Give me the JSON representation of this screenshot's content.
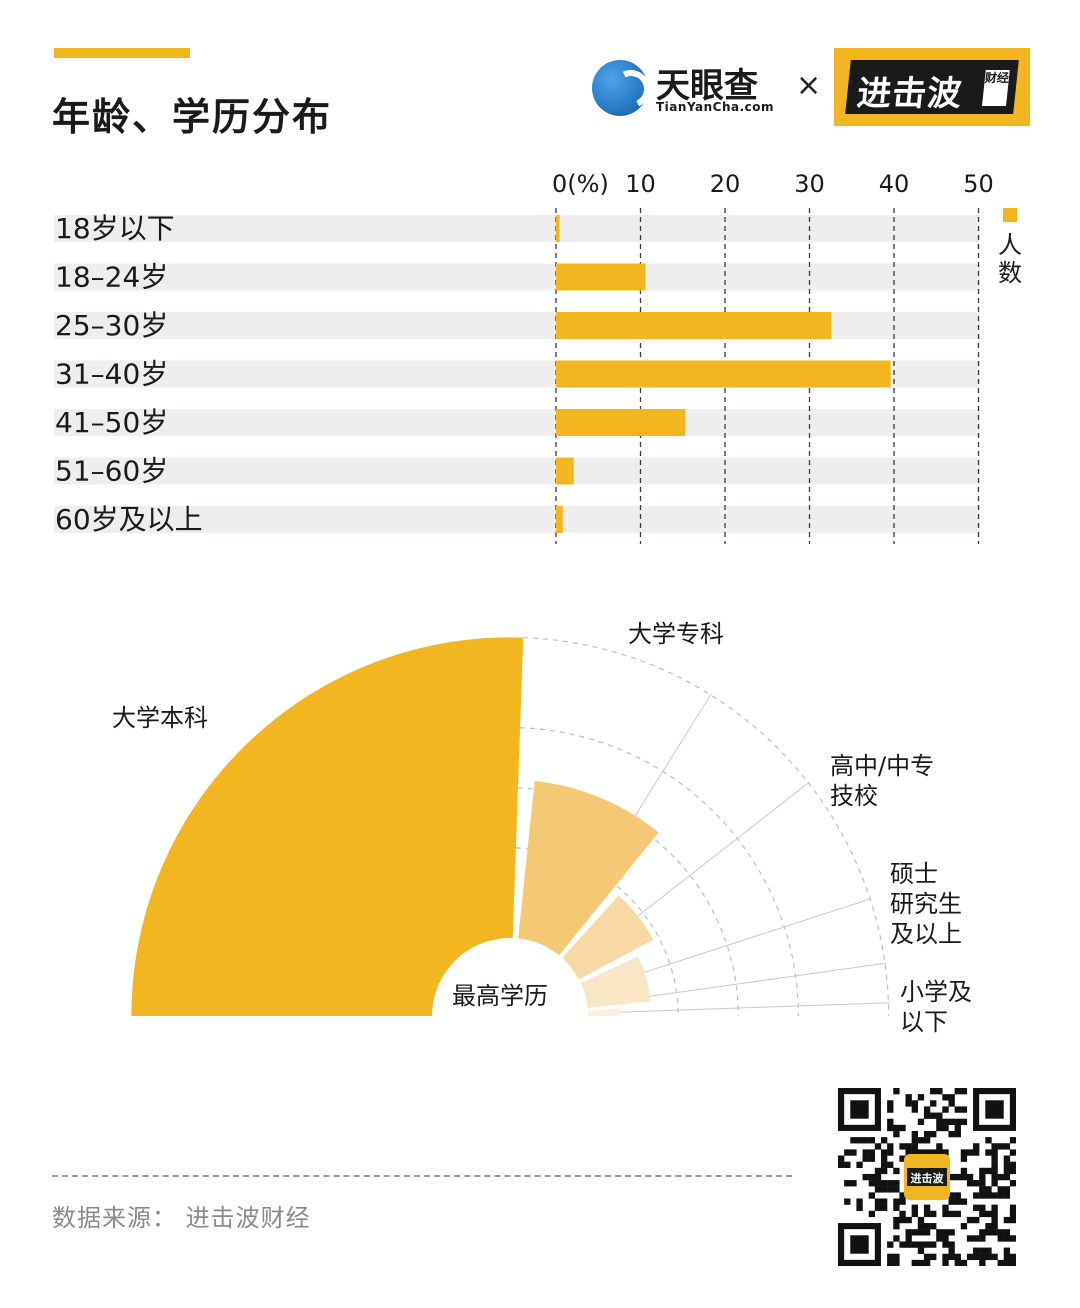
{
  "header": {
    "title": "年龄、学历分布",
    "brand_name": "天眼查",
    "brand_url": "TianYanCha.com",
    "times_symbol": "×",
    "partner_name": "进击波",
    "partner_sub": "财经"
  },
  "colors": {
    "accent": "#f2b620",
    "track": "#efeded",
    "edu_shades": [
      "#f2b620",
      "#f4c875",
      "#f7d9a3",
      "#f9e6c6",
      "#fbf0df"
    ]
  },
  "chart_data": [
    {
      "type": "bar",
      "orientation": "horizontal",
      "categories": [
        "18岁以下",
        "18–24岁",
        "25–30岁",
        "31–40岁",
        "41–50岁",
        "51–60岁",
        "60岁及以上"
      ],
      "values": [
        0.4,
        10.6,
        32.6,
        39.6,
        15.3,
        2.1,
        0.8
      ],
      "xlim": [
        0,
        50
      ],
      "tick_labels": [
        "0(%)",
        "10",
        "20",
        "30",
        "40",
        "50"
      ],
      "tick_values": [
        0,
        10,
        20,
        30,
        40,
        50
      ],
      "grid": "dashed vertical",
      "legend": "right",
      "series": [
        {
          "name": "人数",
          "values": [
            0.4,
            10.6,
            32.6,
            39.6,
            15.3,
            2.1,
            0.8
          ]
        }
      ]
    },
    {
      "type": "pie",
      "variant": "half polar area",
      "center_label": "最高学历",
      "categories": [
        "大学本科",
        "大学专科",
        "高中/中专\n技校",
        "硕士\n研究生\n及以上",
        "小学及\n以下"
      ],
      "values": [
        57,
        30,
        16,
        12,
        6
      ]
    }
  ],
  "footer": {
    "source": "数据来源：  进击波财经",
    "qr_badge": "进击波"
  }
}
